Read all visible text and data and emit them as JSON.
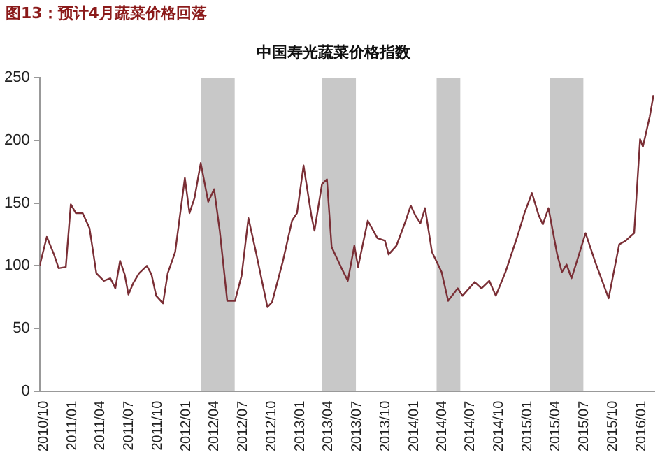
{
  "chart_data": {
    "type": "line",
    "title": "图13：预计4月蔬菜价格回落",
    "subtitle": "中国寿光蔬菜价格指数",
    "x": [
      "2010-10-01",
      "2010-10-24",
      "2010-11-16",
      "2010-12-01",
      "2010-12-24",
      "2011-01-09",
      "2011-01-25",
      "2011-02-16",
      "2011-03-10",
      "2011-04-01",
      "2011-04-25",
      "2011-05-16",
      "2011-06-01",
      "2011-06-16",
      "2011-07-01",
      "2011-07-13",
      "2011-07-28",
      "2011-08-16",
      "2011-09-10",
      "2011-09-25",
      "2011-10-10",
      "2011-11-01",
      "2011-11-16",
      "2011-12-10",
      "2012-01-10",
      "2012-01-25",
      "2012-02-10",
      "2012-03-01",
      "2012-03-25",
      "2012-04-13",
      "2012-05-01",
      "2012-05-25",
      "2012-06-19",
      "2012-07-10",
      "2012-08-01",
      "2012-08-25",
      "2012-10-01",
      "2012-10-16",
      "2012-11-19",
      "2012-12-19",
      "2013-01-04",
      "2013-01-25",
      "2013-02-19",
      "2013-03-01",
      "2013-03-25",
      "2013-04-10",
      "2013-04-25",
      "2013-05-25",
      "2013-06-16",
      "2013-07-07",
      "2013-07-19",
      "2013-08-19",
      "2013-09-19",
      "2013-10-13",
      "2013-10-25",
      "2013-11-19",
      "2013-12-19",
      "2014-01-04",
      "2014-01-19",
      "2014-02-04",
      "2014-02-19",
      "2014-03-13",
      "2014-04-13",
      "2014-05-04",
      "2014-06-04",
      "2014-06-19",
      "2014-07-28",
      "2014-08-19",
      "2014-09-13",
      "2014-10-04",
      "2014-11-04",
      "2014-12-13",
      "2015-01-04",
      "2015-01-28",
      "2015-02-19",
      "2015-03-04",
      "2015-03-22",
      "2015-04-19",
      "2015-05-04",
      "2015-05-19",
      "2015-06-04",
      "2015-06-28",
      "2015-07-19",
      "2015-08-19",
      "2015-10-01",
      "2015-11-04",
      "2015-11-25",
      "2015-12-22",
      "2016-01-10",
      "2016-01-19",
      "2016-02-10",
      "2016-02-22"
    ],
    "series": [
      {
        "color": "#7a2e35",
        "values": [
          100,
          123,
          109,
          98,
          99,
          149,
          142,
          142,
          130,
          94,
          88,
          90,
          82,
          104,
          93,
          77,
          86,
          94,
          100,
          93,
          76,
          70,
          94,
          111,
          170,
          142,
          154,
          182,
          151,
          161,
          128,
          72,
          72,
          92,
          138,
          111,
          67,
          71,
          103,
          136,
          142,
          180,
          140,
          128,
          165,
          169,
          115,
          99,
          88,
          116,
          99,
          136,
          122,
          120,
          109,
          116,
          136,
          148,
          140,
          134,
          146,
          111,
          95,
          72,
          82,
          76,
          87,
          82,
          88,
          76,
          95,
          124,
          142,
          158,
          140,
          133,
          146,
          109,
          95,
          101,
          90,
          109,
          126,
          103,
          74,
          117,
          120,
          126,
          201,
          195,
          219,
          236
        ]
      }
    ],
    "xlim": [
      "2010-10-01",
      "2016-02-25"
    ],
    "xticks": [
      {
        "value": "2010-10",
        "label": "2010/10"
      },
      {
        "value": "2011-01",
        "label": "2011/01"
      },
      {
        "value": "2011-04",
        "label": "2011/04"
      },
      {
        "value": "2011-07",
        "label": "2011/07"
      },
      {
        "value": "2011-10",
        "label": "2011/10"
      },
      {
        "value": "2012-01",
        "label": "2012/01"
      },
      {
        "value": "2012-04",
        "label": "2012/04"
      },
      {
        "value": "2012-07",
        "label": "2012/07"
      },
      {
        "value": "2012-10",
        "label": "2012/10"
      },
      {
        "value": "2013-01",
        "label": "2013/01"
      },
      {
        "value": "2013-04",
        "label": "2013/04"
      },
      {
        "value": "2013-07",
        "label": "2013/07"
      },
      {
        "value": "2013-10",
        "label": "2013/10"
      },
      {
        "value": "2014-01",
        "label": "2014/01"
      },
      {
        "value": "2014-04",
        "label": "2014/04"
      },
      {
        "value": "2014-07",
        "label": "2014/07"
      },
      {
        "value": "2014-10",
        "label": "2014/10"
      },
      {
        "value": "2015-01",
        "label": "2015/01"
      },
      {
        "value": "2015-04",
        "label": "2015/04"
      },
      {
        "value": "2015-07",
        "label": "2015/07"
      },
      {
        "value": "2015-10",
        "label": "2015/10"
      },
      {
        "value": "2016-01",
        "label": "2016/01"
      }
    ],
    "ylim": [
      0,
      250
    ],
    "yticks": [
      0,
      50,
      100,
      150,
      200,
      250
    ],
    "grid": false,
    "legend": false,
    "marker": "none",
    "line_style": "solid",
    "bands": [
      {
        "axis": "x",
        "from": "2012-03-01",
        "to": "2012-06-18",
        "color": "#c8c8c8"
      },
      {
        "axis": "x",
        "from": "2013-03-25",
        "to": "2013-07-12",
        "color": "#c8c8c8"
      },
      {
        "axis": "x",
        "from": "2014-03-28",
        "to": "2014-06-12",
        "color": "#c8c8c8"
      },
      {
        "axis": "x",
        "from": "2015-03-27",
        "to": "2015-07-12",
        "color": "#c8c8c8"
      }
    ]
  }
}
